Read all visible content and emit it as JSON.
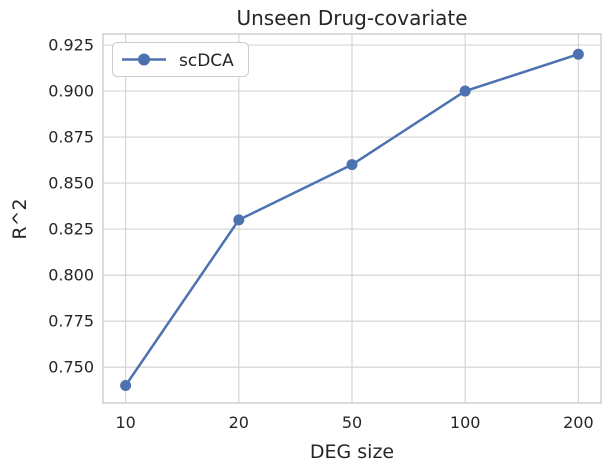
{
  "chart_data": {
    "type": "line",
    "title": "Unseen Drug-covariate",
    "xlabel": "DEG size",
    "ylabel": "R^2",
    "categories": [
      "10",
      "20",
      "50",
      "100",
      "200"
    ],
    "series": [
      {
        "name": "scDCA",
        "color": "#4C72B0",
        "marker": "circle",
        "values": [
          0.74,
          0.83,
          0.86,
          0.9,
          0.92
        ]
      }
    ],
    "ytick_labels": [
      "0.750",
      "0.775",
      "0.800",
      "0.825",
      "0.850",
      "0.875",
      "0.900",
      "0.925"
    ],
    "ytick_values": [
      0.75,
      0.775,
      0.8,
      0.825,
      0.85,
      0.875,
      0.9,
      0.925
    ],
    "ylim": [
      0.7305,
      0.931
    ],
    "grid": true,
    "legend": {
      "position": "upper left",
      "entries": [
        "scDCA"
      ]
    },
    "colors": {
      "background": "#ffffff",
      "grid": "#d4d4d4",
      "spine": "#cccccc",
      "text": "#262626",
      "line": "#4C72B0"
    }
  }
}
